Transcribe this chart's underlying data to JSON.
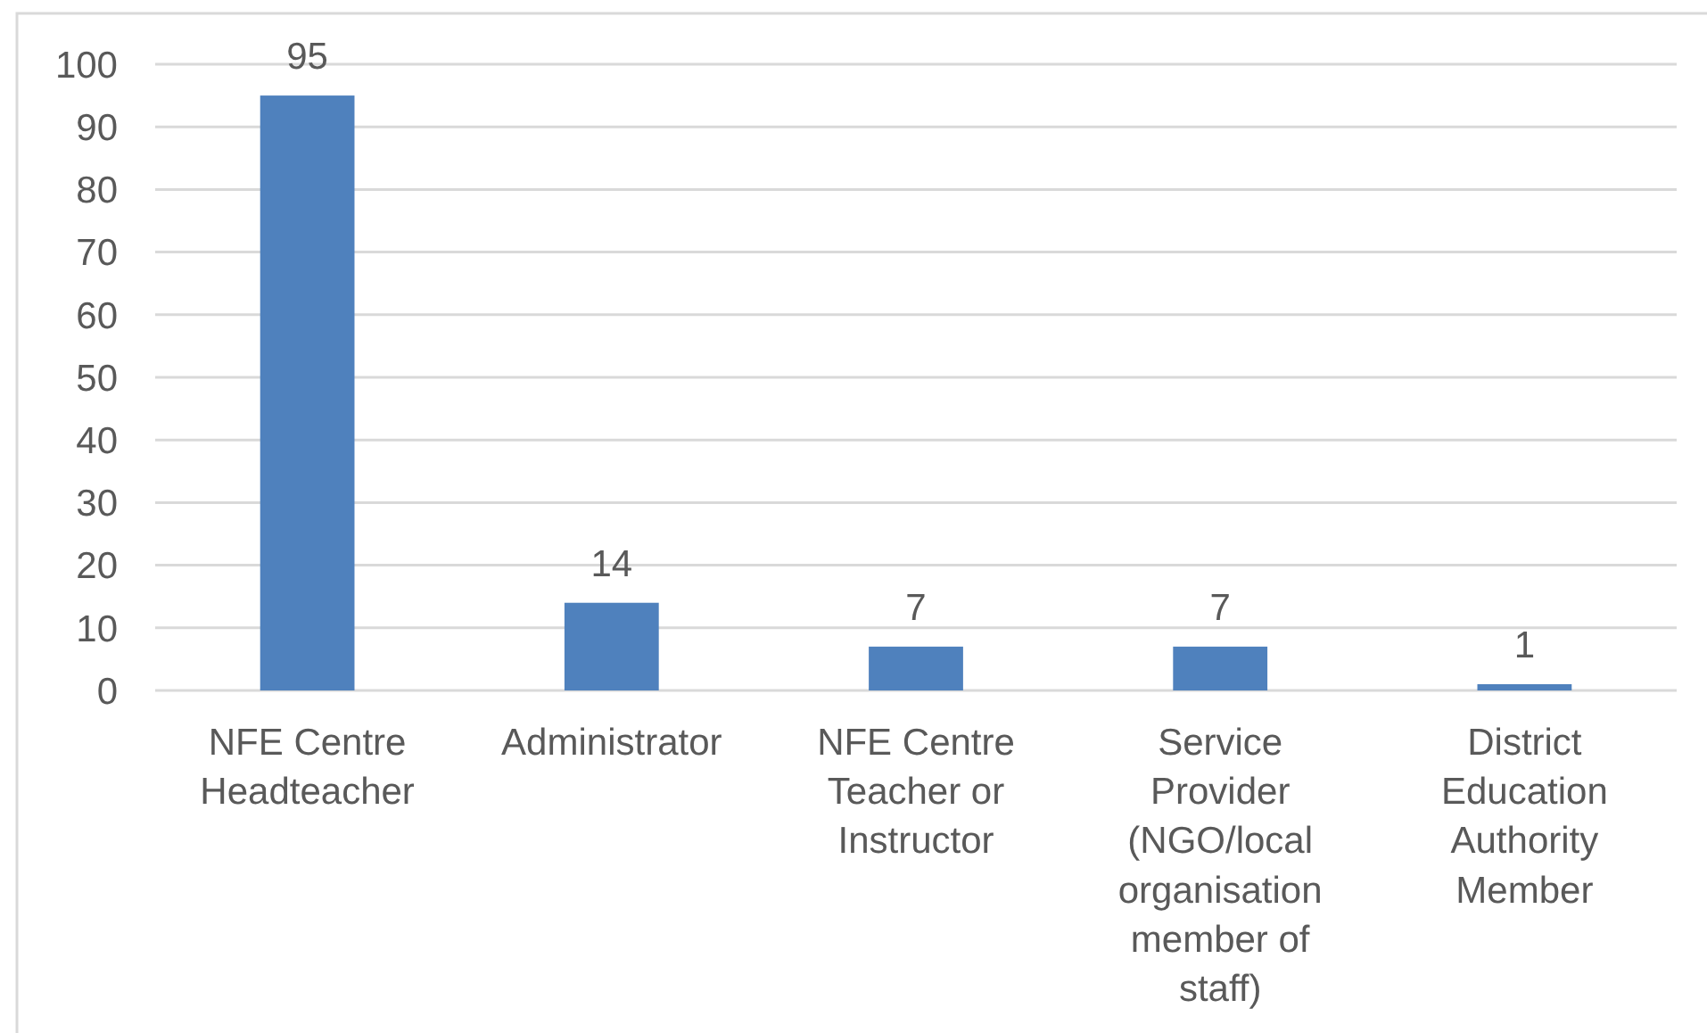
{
  "chart_data": {
    "type": "bar",
    "categories": [
      "NFE Centre Headteacher",
      "Administrator",
      "NFE Centre Teacher or Instructor",
      "Service Provider (NGO/local organisation member of staff)",
      "District Education Authority Member"
    ],
    "values": [
      95,
      14,
      7,
      7,
      1
    ],
    "color": "#4f81bd",
    "ylim": [
      0,
      100
    ],
    "yticks": [
      0,
      10,
      20,
      30,
      40,
      50,
      60,
      70,
      80,
      90,
      100
    ],
    "grid": "y",
    "data_labels": true
  }
}
